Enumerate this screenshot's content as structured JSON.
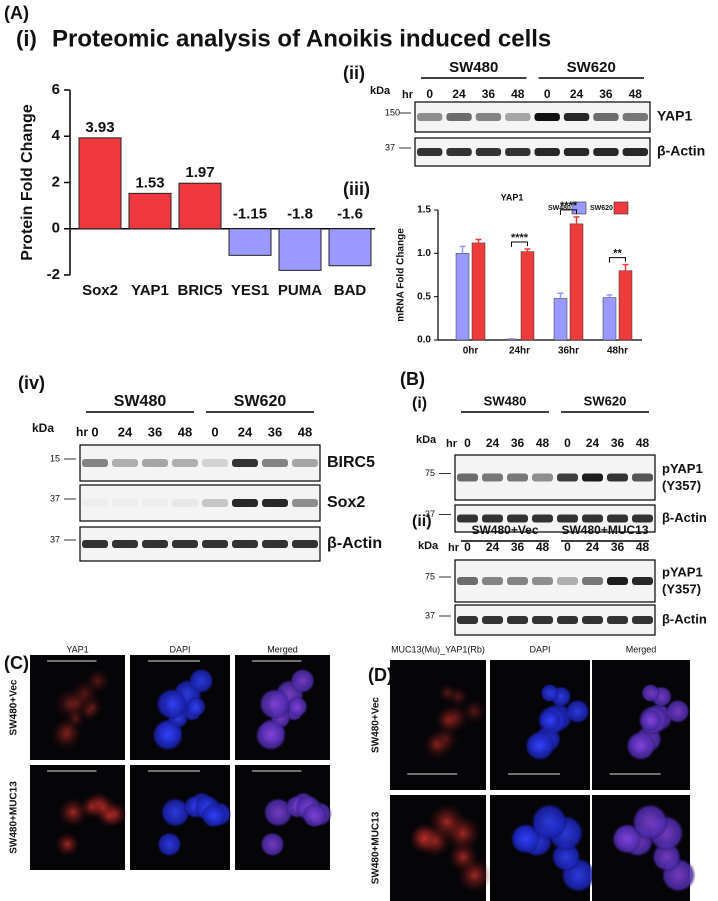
{
  "title": "Proteomic analysis of Anoikis induced cells",
  "panel_labels": {
    "A": "(A)",
    "A_i": "(i)",
    "A_ii": "(ii)",
    "A_iii": "(iii)",
    "A_iv": "(iv)",
    "B": "(B)",
    "B_i": "(i)",
    "B_ii": "(ii)",
    "C": "(C)",
    "D": "(D)"
  },
  "chart_data": [
    {
      "type": "bar",
      "ylabel": "Protein Fold Change",
      "categories": [
        "Sox2",
        "YAP1",
        "BRIC5",
        "YES1",
        "PUMA",
        "BAD"
      ],
      "values": [
        3.93,
        1.53,
        1.97,
        -1.15,
        -1.8,
        -1.6
      ],
      "colors": [
        "#f0393e",
        "#f0393e",
        "#f0393e",
        "#9999ff",
        "#9999ff",
        "#9999ff"
      ],
      "ylim": [
        -2,
        6
      ],
      "yticks": [
        -2,
        0,
        2,
        4,
        6
      ]
    },
    {
      "type": "grouped_bar",
      "title": "YAP1",
      "ylabel": "mRNA Fold Change",
      "categories": [
        "0hr",
        "24hr",
        "36hr",
        "48hr"
      ],
      "series": [
        {
          "name": "SW480",
          "color": "#9999ff",
          "values": [
            1.0,
            0.01,
            0.48,
            0.49
          ],
          "errors": [
            0.08,
            0.005,
            0.06,
            0.03
          ]
        },
        {
          "name": "SW620",
          "color": "#ee3b3b",
          "values": [
            1.12,
            1.02,
            1.34,
            0.8
          ],
          "errors": [
            0.04,
            0.03,
            0.08,
            0.07
          ]
        }
      ],
      "annotations": [
        {
          "x": "24hr",
          "text": "****"
        },
        {
          "x": "36hr",
          "text": "****"
        },
        {
          "x": "48hr",
          "text": "**"
        }
      ],
      "ylim": [
        0,
        1.5
      ],
      "yticks": [
        {
          "value": 0,
          "label": "0.0"
        },
        0.5,
        {
          "value": 1,
          "label": "1.0"
        },
        1.5
      ]
    }
  ],
  "blots": {
    "A_ii": {
      "kda": "kDa",
      "hr": "hr",
      "groups": [
        "SW480",
        "SW620"
      ],
      "timepoints": [
        "0",
        "24",
        "36",
        "48",
        "0",
        "24",
        "36",
        "48"
      ],
      "rows": [
        {
          "marker": "150",
          "protein": "YAP1"
        },
        {
          "marker": "37",
          "protein": "β-Actin"
        }
      ]
    },
    "A_iv": {
      "kda": "kDa",
      "hr": "hr",
      "groups": [
        "SW480",
        "SW620"
      ],
      "timepoints": [
        "0",
        "24",
        "36",
        "48",
        "0",
        "24",
        "36",
        "48"
      ],
      "rows": [
        {
          "marker": "15",
          "protein": "BIRC5"
        },
        {
          "marker": "37",
          "protein": "Sox2"
        },
        {
          "marker": "37",
          "protein": "β-Actin"
        }
      ]
    },
    "B_i": {
      "kda": "kDa",
      "hr": "hr",
      "groups": [
        "SW480",
        "SW620"
      ],
      "timepoints": [
        "0",
        "24",
        "36",
        "48",
        "0",
        "24",
        "36",
        "48"
      ],
      "rows": [
        {
          "marker": "75",
          "protein": "pYAP1",
          "note": "(Y357)"
        },
        {
          "marker": "37",
          "protein": "β-Actin"
        }
      ]
    },
    "B_ii": {
      "kda": "kDa",
      "hr": "hr",
      "groups": [
        "SW480+Vec",
        "SW480+MUC13"
      ],
      "timepoints": [
        "0",
        "24",
        "36",
        "48",
        "0",
        "24",
        "36",
        "48"
      ],
      "rows": [
        {
          "marker": "75",
          "protein": "pYAP1",
          "note": "(Y357)"
        },
        {
          "marker": "37",
          "protein": "β-Actin"
        }
      ]
    }
  },
  "microscopy": {
    "C": {
      "columns": [
        "YAP1",
        "DAPI",
        "Merged"
      ],
      "rows": [
        "SW480+Vec",
        "SW480+MUC13"
      ]
    },
    "D": {
      "columns": [
        "MUC13(Mu)_YAP1(Rb)",
        "DAPI",
        "Merged"
      ],
      "rows": [
        "SW480+Vec",
        "SW480+MUC13"
      ]
    }
  }
}
